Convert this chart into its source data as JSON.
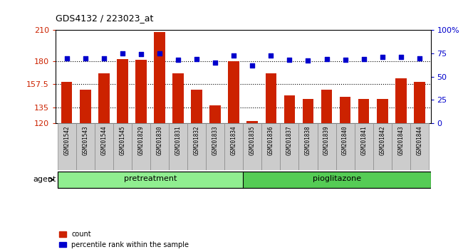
{
  "title": "GDS4132 / 223023_at",
  "samples": [
    "GSM201542",
    "GSM201543",
    "GSM201544",
    "GSM201545",
    "GSM201829",
    "GSM201830",
    "GSM201831",
    "GSM201832",
    "GSM201833",
    "GSM201834",
    "GSM201835",
    "GSM201836",
    "GSM201837",
    "GSM201838",
    "GSM201839",
    "GSM201840",
    "GSM201841",
    "GSM201842",
    "GSM201843",
    "GSM201844"
  ],
  "bar_values": [
    160,
    152,
    168,
    182,
    181,
    208,
    168,
    152,
    137,
    180,
    122,
    168,
    147,
    143,
    152,
    145,
    143,
    143,
    163,
    160
  ],
  "percentile_values": [
    70,
    70,
    70,
    75,
    74,
    75,
    68,
    69,
    65,
    73,
    62,
    73,
    68,
    67,
    69,
    68,
    69,
    71,
    71,
    70
  ],
  "pretreatment_count": 10,
  "pioglitazone_count": 10,
  "groups": [
    "pretreatment",
    "pioglitazone"
  ],
  "ylim_left": [
    120,
    210
  ],
  "ylim_right": [
    0,
    100
  ],
  "yticks_left": [
    120,
    135,
    157.5,
    180,
    210
  ],
  "ytick_labels_left": [
    "120",
    "135",
    "157.5",
    "180",
    "210"
  ],
  "yticks_right": [
    0,
    25,
    50,
    75,
    100
  ],
  "ytick_labels_right": [
    "0",
    "25",
    "50",
    "75",
    "100%"
  ],
  "bar_color": "#cc2200",
  "percentile_color": "#0000cc",
  "grid_color": "#000000",
  "bg_color": "#ffffff",
  "tick_label_color_left": "#cc2200",
  "tick_label_color_right": "#0000cc",
  "pretreatment_color": "#90ee90",
  "pioglitazone_color": "#55cc55",
  "cell_bg_color": "#cccccc",
  "bar_bottom": 120,
  "bar_width": 0.6,
  "cell_outline_color": "#888888"
}
